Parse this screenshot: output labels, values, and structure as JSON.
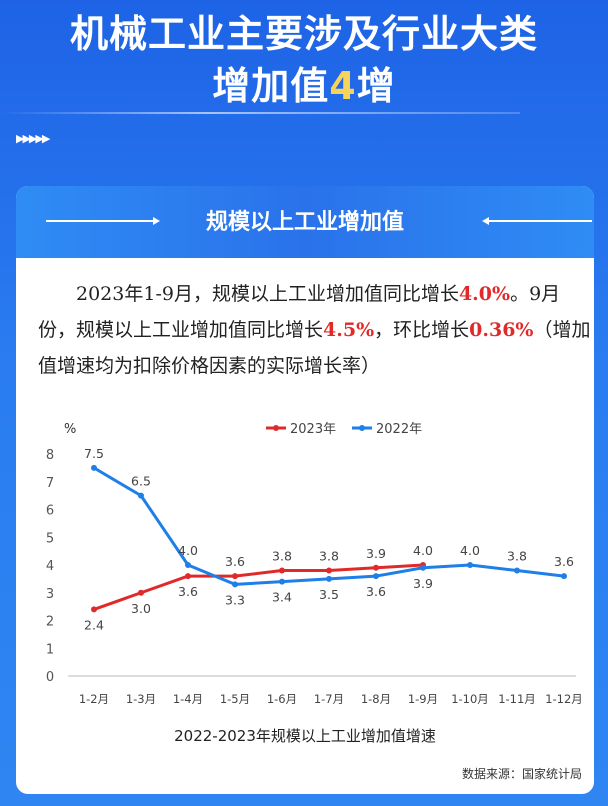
{
  "hero": {
    "line1": "机械工业主要涉及行业大类",
    "line2_prefix": "增加值",
    "line2_highlight": "4",
    "line2_suffix": "增"
  },
  "decor": {
    "arrows": "▶▶▶▶▶"
  },
  "card": {
    "title": "规模以上工业增加值",
    "paragraph": {
      "p1": "2023年1-9月，规模以上工业增加值同比增长",
      "v1": "4.0%",
      "p2": "。9月份，规模以上工业增加值同比增长",
      "v2": "4.5%",
      "p3": "，环比增长",
      "v3": "0.36%",
      "p4": "（增加值增速均为扣除价格因素的实际增长率）"
    },
    "source": "数据来源：国家统计局"
  },
  "colors": {
    "series_2023": "#e02a2a",
    "series_2022": "#1e7fe8"
  },
  "chart_data": {
    "type": "line",
    "title": "2022-2023年规模以上工业增加值增速",
    "ylabel": "%",
    "ylim": [
      0,
      8
    ],
    "yticks": [
      0,
      1,
      2,
      3,
      4,
      5,
      6,
      7,
      8
    ],
    "grid": false,
    "legend_position": "top",
    "categories": [
      "1-2月",
      "1-3月",
      "1-4月",
      "1-5月",
      "1-6月",
      "1-7月",
      "1-8月",
      "1-9月",
      "1-10月",
      "1-11月",
      "1-12月"
    ],
    "series": [
      {
        "name": "2023年",
        "values": [
          2.4,
          3.0,
          3.6,
          3.6,
          3.8,
          3.8,
          3.9,
          4.0,
          null,
          null,
          null
        ]
      },
      {
        "name": "2022年",
        "values": [
          7.5,
          6.5,
          4.0,
          3.3,
          3.4,
          3.5,
          3.6,
          3.9,
          4.0,
          3.8,
          3.6
        ]
      }
    ]
  }
}
